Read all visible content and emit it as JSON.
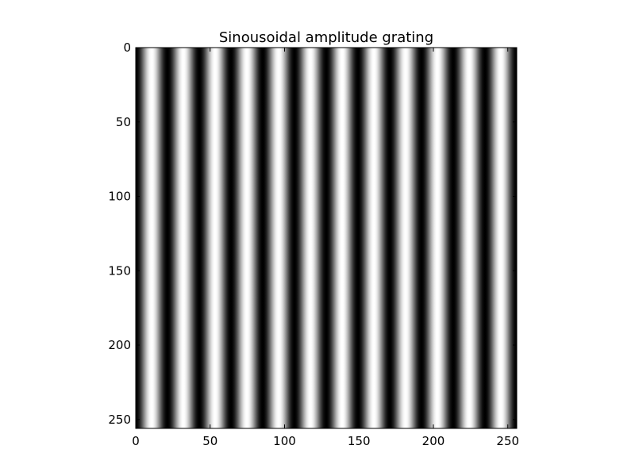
{
  "chart_data": {
    "type": "heatmap",
    "title": "Sinousoidal amplitude grating",
    "xlabel": "",
    "ylabel": "",
    "colormap": "gray",
    "grid": false,
    "image_width": 256,
    "image_height": 256,
    "grating": {
      "orientation": "vertical",
      "period": 21.33,
      "cycles": 12,
      "phase_at_x0": "dark",
      "amplitude_min": 0,
      "amplitude_max": 1
    },
    "xlim": [
      0,
      256
    ],
    "ylim": [
      256,
      0
    ],
    "xticks": [
      0,
      50,
      100,
      150,
      200,
      250
    ],
    "yticks": [
      0,
      50,
      100,
      150,
      200,
      250
    ],
    "xtick_labels": [
      "0",
      "50",
      "100",
      "150",
      "200",
      "250"
    ],
    "ytick_labels": [
      "0",
      "50",
      "100",
      "150",
      "200",
      "250"
    ]
  }
}
